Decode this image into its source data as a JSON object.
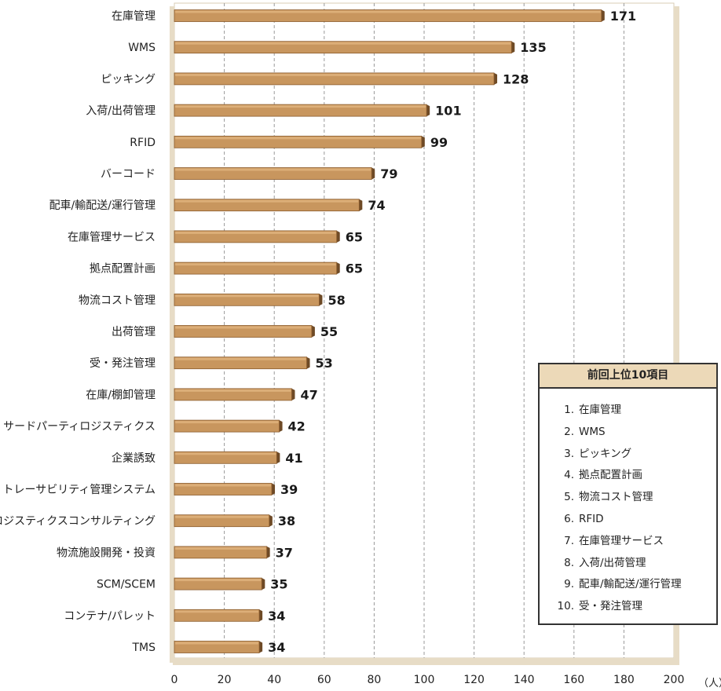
{
  "chart_data": {
    "type": "bar",
    "orientation": "horizontal",
    "categories": [
      "在庫管理",
      "WMS",
      "ピッキング",
      "入荷/出荷管理",
      "RFID",
      "バーコード",
      "配車/輸配送/運行管理",
      "在庫管理サービス",
      "拠点配置計画",
      "物流コスト管理",
      "出荷管理",
      "受・発注管理",
      "在庫/棚卸管理",
      "サードパーティロジスティクス",
      "企業誘致",
      "トレーサビリティ管理システム",
      "ロジスティクスコンサルティング",
      "物流施設開発・投資",
      "SCM/SCEM",
      "コンテナ/パレット",
      "TMS"
    ],
    "values": [
      171,
      135,
      128,
      101,
      99,
      79,
      74,
      65,
      65,
      58,
      55,
      53,
      47,
      42,
      41,
      39,
      38,
      37,
      35,
      34,
      34
    ],
    "value_labels": [
      "171",
      "135",
      "128",
      "101",
      "99",
      "79",
      "74",
      "65",
      "65",
      "58",
      "55",
      "53",
      "47",
      "42",
      "41",
      "39",
      "38",
      "37",
      "35",
      "34",
      "34"
    ],
    "xlim": [
      0,
      200
    ],
    "xticks": [
      "0",
      "20",
      "40",
      "60",
      "80",
      "100",
      "120",
      "140",
      "160",
      "180",
      "200"
    ],
    "x_unit": "（人）",
    "grid": "vertical dashed",
    "colors": {
      "bar": "#c8965e",
      "bar_edge": "#8a5a2b",
      "bar_shadow": "#6e4a26",
      "plot_shadow": "#e7dcc6",
      "grid": "#999999"
    }
  },
  "previous_top10": {
    "title": "前回上位10項目",
    "items": [
      {
        "rank": "1.",
        "label": "在庫管理"
      },
      {
        "rank": "2.",
        "label": "WMS"
      },
      {
        "rank": "3.",
        "label": "ピッキング"
      },
      {
        "rank": "4.",
        "label": "拠点配置計画"
      },
      {
        "rank": "5.",
        "label": "物流コスト管理"
      },
      {
        "rank": "6.",
        "label": "RFID"
      },
      {
        "rank": "7.",
        "label": "在庫管理サービス"
      },
      {
        "rank": "8.",
        "label": "入荷/出荷管理"
      },
      {
        "rank": "9.",
        "label": "配車/輸配送/運行管理"
      },
      {
        "rank": "10.",
        "label": "受・発注管理"
      }
    ]
  }
}
